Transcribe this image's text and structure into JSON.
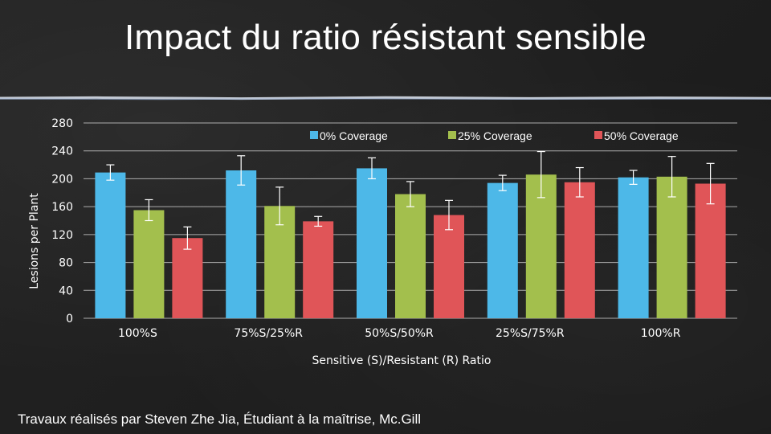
{
  "slide": {
    "title": "Impact du ratio résistant sensible",
    "footer": "Travaux réalisés par Steven Zhe Jia, Étudiant à la maîtrise, Mc.Gill"
  },
  "colors": {
    "background": "#1f1f1f",
    "text": "#ffffff",
    "gridline": "#d9d9d9"
  },
  "chart_data": {
    "type": "bar",
    "xlabel": "Sensitive (S)/Resistant (R) Ratio",
    "ylabel": "Lesions per Plant",
    "ylim": [
      0,
      280
    ],
    "yticks": [
      0,
      40,
      80,
      120,
      160,
      200,
      240,
      280
    ],
    "grid": true,
    "legend_position": "top-right",
    "categories": [
      "100%S",
      "75%S/25%R",
      "50%S/50%R",
      "25%S/75%R",
      "100%R"
    ],
    "series": [
      {
        "name": "0% Coverage",
        "color": "#4db8e8",
        "values": [
          209,
          212,
          215,
          194,
          202
        ],
        "errors": [
          11,
          21,
          15,
          11,
          10
        ]
      },
      {
        "name": "25% Coverage",
        "color": "#a3bf4d",
        "values": [
          155,
          161,
          178,
          206,
          203
        ],
        "errors": [
          15,
          27,
          18,
          33,
          29
        ]
      },
      {
        "name": "50% Coverage",
        "color": "#e05558",
        "values": [
          115,
          139,
          148,
          195,
          193
        ],
        "errors": [
          16,
          7,
          21,
          21,
          29
        ]
      }
    ]
  }
}
